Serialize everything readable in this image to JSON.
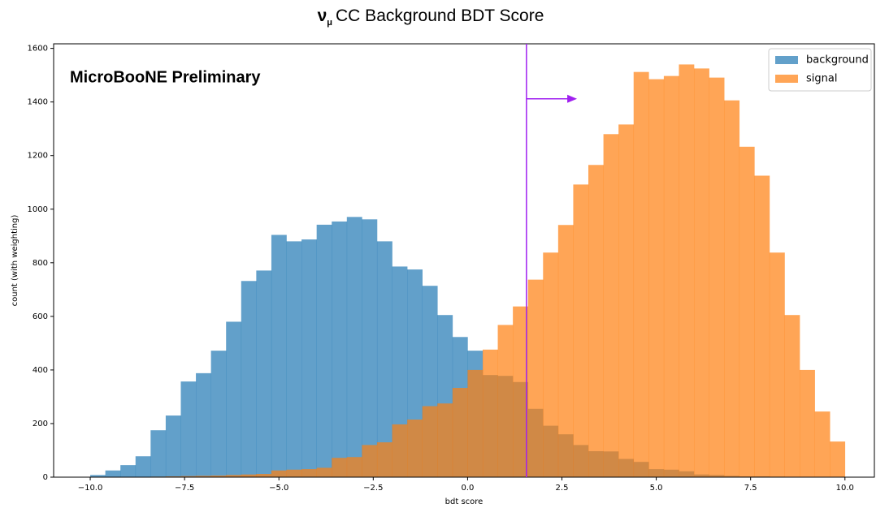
{
  "chart_data": {
    "type": "histogram",
    "title": [
      "ν",
      "μ",
      "CC Background BDT Score"
    ],
    "annotation": "MicroBooNE Preliminary",
    "x_label": "bdt score",
    "y_label": "count (with weighting)",
    "bins": [
      -10,
      -9.6,
      -9.2,
      -8.8,
      -8.4,
      -8,
      -7.6,
      -7.2,
      -6.8,
      -6.4,
      -6,
      -5.6,
      -5.2,
      -4.8,
      -4.4,
      -4,
      -3.6,
      -3.2,
      -2.8,
      -2.4,
      -2,
      -1.6,
      -1.2,
      -0.8,
      -0.4,
      0,
      0.4,
      0.8,
      1.2,
      1.6,
      2,
      2.4,
      2.8,
      3.2,
      3.6,
      4,
      4.4,
      4.8,
      5.2,
      5.6,
      6,
      6.4,
      6.8,
      7.2,
      7.6,
      8,
      8.4,
      8.8,
      9.2,
      9.6,
      10
    ],
    "series": [
      {
        "name": "background",
        "color": "#1f77b4",
        "values": [
          8,
          25,
          45,
          78,
          175,
          230,
          357,
          388,
          472,
          580,
          732,
          771,
          904,
          880,
          887,
          942,
          954,
          971,
          962,
          880,
          786,
          775,
          714,
          605,
          523,
          472,
          381,
          378,
          355,
          255,
          192,
          160,
          120,
          97,
          96,
          68,
          57,
          30,
          28,
          22,
          10,
          8,
          5,
          3,
          3,
          2,
          1,
          1,
          0,
          0
        ]
      },
      {
        "name": "signal",
        "color": "#ff7f0e",
        "values": [
          0,
          0,
          1,
          1,
          2,
          3,
          4,
          5,
          6,
          8,
          10,
          12,
          25,
          28,
          30,
          35,
          72,
          75,
          120,
          130,
          197,
          215,
          265,
          275,
          333,
          400,
          476,
          568,
          637,
          737,
          838,
          941,
          1092,
          1165,
          1280,
          1316,
          1512,
          1485,
          1497,
          1540,
          1525,
          1491,
          1406,
          1233,
          1125,
          838,
          605,
          400,
          245,
          133
        ]
      }
    ],
    "opacity": 0.7,
    "cut": {
      "x": 1.56,
      "arrow_end": 2.9,
      "arrow_y": 1412,
      "color": "#a020f0"
    },
    "xlim": [
      -10.97,
      10.78
    ],
    "ylim": [
      0,
      1617
    ],
    "xticks": [
      {
        "value": -10,
        "label": "−10.0"
      },
      {
        "value": -7.5,
        "label": "−7.5"
      },
      {
        "value": -5,
        "label": "−5.0"
      },
      {
        "value": -2.5,
        "label": "−2.5"
      },
      {
        "value": 0,
        "label": "0.0"
      },
      2.5,
      {
        "value": 5,
        "label": "5.0"
      },
      7.5,
      {
        "value": 10,
        "label": "10.0"
      }
    ],
    "yticks": [
      0,
      200,
      400,
      600,
      800,
      1000,
      1200,
      1400,
      1600
    ],
    "legend": "upper right"
  }
}
